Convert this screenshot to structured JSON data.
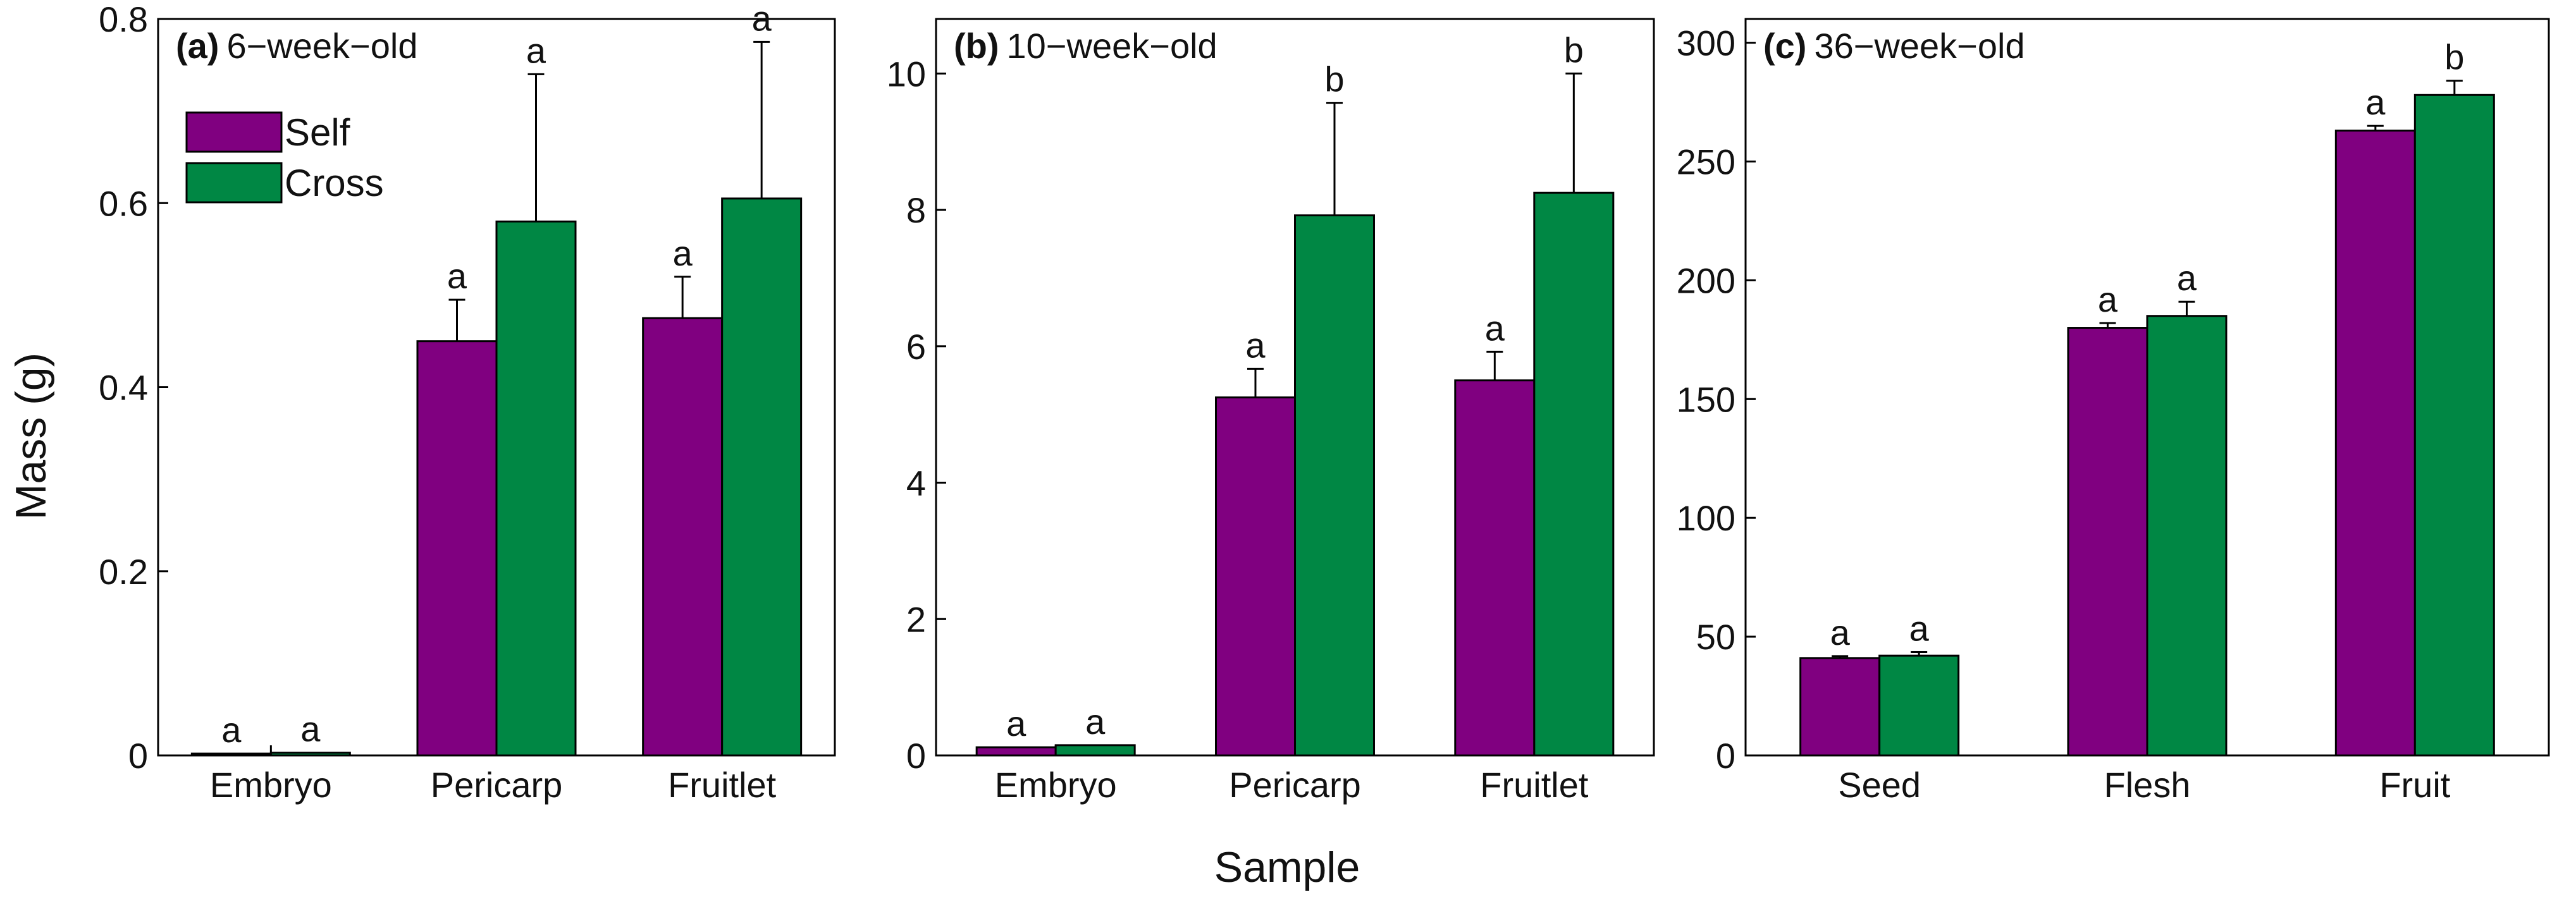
{
  "figure": {
    "ylabel": "Mass (g)",
    "xlabel": "Sample",
    "legend": {
      "position": "top-left of panel (a)",
      "entries": [
        {
          "label": "Self",
          "color": "#800080"
        },
        {
          "label": "Cross",
          "color": "#008744"
        }
      ]
    }
  },
  "chart_data": [
    {
      "type": "bar",
      "panel_tag": "(a)",
      "title": "6−week−old",
      "categories": [
        "Embryo",
        "Pericarp",
        "Fruitlet"
      ],
      "ylim": [
        0,
        0.8
      ],
      "yticks": [
        0,
        0.2,
        0.4,
        0.6,
        0.8
      ],
      "ytick_labels": [
        "0",
        "0.2",
        "0.4",
        "0.6",
        "0.8"
      ],
      "series": [
        {
          "name": "Self",
          "color": "#800080",
          "values": [
            0.002,
            0.45,
            0.475
          ],
          "errors": [
            0.0,
            0.045,
            0.045
          ],
          "letters": [
            "a",
            "a",
            "a"
          ]
        },
        {
          "name": "Cross",
          "color": "#008744",
          "values": [
            0.003,
            0.58,
            0.605
          ],
          "errors": [
            0.0,
            0.16,
            0.17
          ],
          "letters": [
            "a",
            "a",
            "a"
          ]
        }
      ]
    },
    {
      "type": "bar",
      "panel_tag": "(b)",
      "title": "10−week−old",
      "categories": [
        "Embryo",
        "Pericarp",
        "Fruitlet"
      ],
      "ylim": [
        0,
        10.8
      ],
      "yticks": [
        0,
        2,
        4,
        6,
        8,
        10
      ],
      "ytick_labels": [
        "0",
        "2",
        "4",
        "6",
        "8",
        "10"
      ],
      "series": [
        {
          "name": "Self",
          "color": "#800080",
          "values": [
            0.12,
            5.25,
            5.5
          ],
          "errors": [
            0.0,
            0.42,
            0.42
          ],
          "letters": [
            "a",
            "a",
            "a"
          ]
        },
        {
          "name": "Cross",
          "color": "#008744",
          "values": [
            0.15,
            7.92,
            8.25
          ],
          "errors": [
            0.0,
            1.65,
            1.75
          ],
          "letters": [
            "a",
            "b",
            "b"
          ]
        }
      ]
    },
    {
      "type": "bar",
      "panel_tag": "(c)",
      "title": "36−week−old",
      "categories": [
        "Seed",
        "Flesh",
        "Fruit"
      ],
      "ylim": [
        0,
        310
      ],
      "yticks": [
        0,
        50,
        100,
        150,
        200,
        250,
        300
      ],
      "ytick_labels": [
        "0",
        "50",
        "100",
        "150",
        "200",
        "250",
        "300"
      ],
      "series": [
        {
          "name": "Self",
          "color": "#800080",
          "values": [
            41,
            180,
            263
          ],
          "errors": [
            0.8,
            2,
            2
          ],
          "letters": [
            "a",
            "a",
            "a"
          ]
        },
        {
          "name": "Cross",
          "color": "#008744",
          "values": [
            42,
            185,
            278
          ],
          "errors": [
            1.5,
            6,
            6
          ],
          "letters": [
            "a",
            "a",
            "b"
          ]
        }
      ]
    }
  ]
}
